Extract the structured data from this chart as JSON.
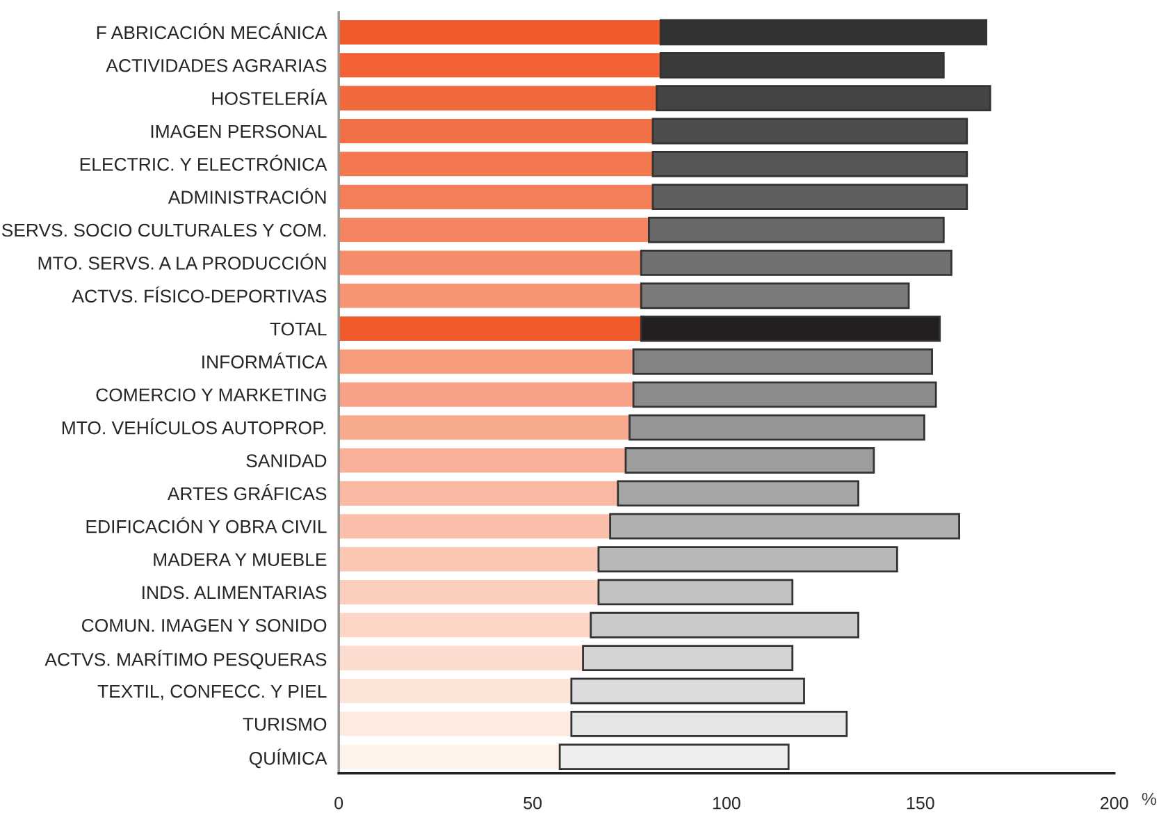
{
  "chart_data": {
    "type": "bar",
    "orientation": "horizontal",
    "stacked": true,
    "xlabel": "%",
    "categories": [
      "F ABRICACIÓN MECÁNICA",
      "ACTIVIDADES AGRARIAS",
      "HOSTELERÍA",
      "IMAGEN PERSONAL",
      "ELECTRIC. Y ELECTRÓNICA",
      "ADMINISTRACIÓN",
      "SERVS. SOCIO CULTURALES Y COM.",
      "MTO. SERVS. A LA PRODUCCIÓN",
      "ACTVS. FÍSICO-DEPORTIVAS",
      "TOTAL",
      "INFORMÁTICA",
      "COMERCIO Y MARKETING",
      "MTO. VEHÍCULOS AUTOPROP.",
      "SANIDAD",
      "ARTES GRÁFICAS",
      "EDIFICACIÓN Y OBRA CIVIL",
      "MADERA Y MUEBLE",
      "INDS. ALIMENTARIAS",
      "COMUN. IMAGEN Y SONIDO",
      "ACTVS. MARÍTIMO PESQUERAS",
      "TEXTIL, CONFECC. Y PIEL",
      "TURISMO",
      "QUÍMICA"
    ],
    "series": [
      {
        "values": [
          83,
          83,
          82,
          81,
          81,
          81,
          80,
          78,
          78,
          78,
          76,
          76,
          75,
          74,
          72,
          70,
          67,
          67,
          65,
          63,
          60,
          60,
          57
        ],
        "colors": [
          "#f15a2b",
          "#f26134",
          "#f2683d",
          "#f37046",
          "#f3774f",
          "#f47e58",
          "#f58562",
          "#f58d6b",
          "#f69474",
          "#f15a2b",
          "#f79b7d",
          "#f7a286",
          "#f8aa8f",
          "#f8b198",
          "#f9b8a1",
          "#fabfaa",
          "#fac7b3",
          "#fbcebd",
          "#fcd5c6",
          "#fcdccf",
          "#fde4d8",
          "#fdebe1",
          "#fef2ea"
        ]
      },
      {
        "values": [
          84,
          73,
          86,
          81,
          81,
          81,
          76,
          80,
          69,
          77,
          77,
          78,
          76,
          64,
          62,
          90,
          77,
          50,
          69,
          54,
          60,
          71,
          59
        ],
        "colors": [
          "#323234",
          "#3b3b3b",
          "#444444",
          "#4d4d4d",
          "#565656",
          "#5f5f5f",
          "#686868",
          "#717171",
          "#7a7a7a",
          "#231f20",
          "#838383",
          "#8c8c8c",
          "#959595",
          "#9d9d9d",
          "#a6a6a6",
          "#afafaf",
          "#b8b8b8",
          "#c1c1c1",
          "#cacaca",
          "#d3d3d3",
          "#dcdcdc",
          "#e5e5e5",
          "#eeeeee"
        ]
      }
    ],
    "xlim": [
      0,
      200
    ],
    "xticks": [
      0,
      50,
      100,
      150,
      200
    ],
    "grid": false,
    "legend": false
  }
}
